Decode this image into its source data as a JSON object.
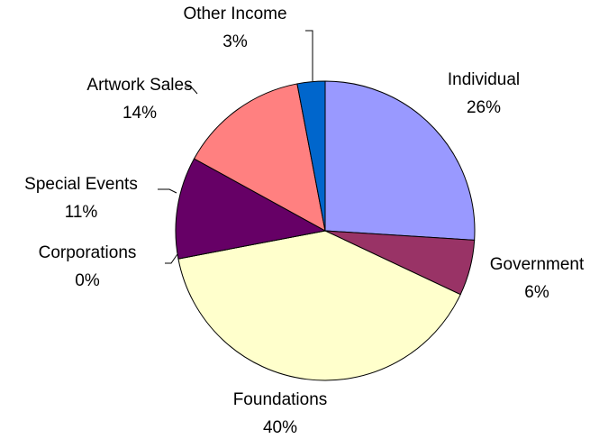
{
  "chart_data": {
    "type": "pie",
    "categories": [
      "Individual",
      "Government",
      "Foundations",
      "Corporations",
      "Special Events",
      "Artwork Sales",
      "Other Income"
    ],
    "values": [
      26,
      6,
      40,
      0,
      11,
      14,
      3
    ],
    "value_labels": [
      "26%",
      "6%",
      "40%",
      "0%",
      "11%",
      "14%",
      "3%"
    ],
    "colors": [
      "#9999ff",
      "#993366",
      "#ffffcc",
      "#ffffff",
      "#660066",
      "#ff8080",
      "#0066cc"
    ]
  }
}
